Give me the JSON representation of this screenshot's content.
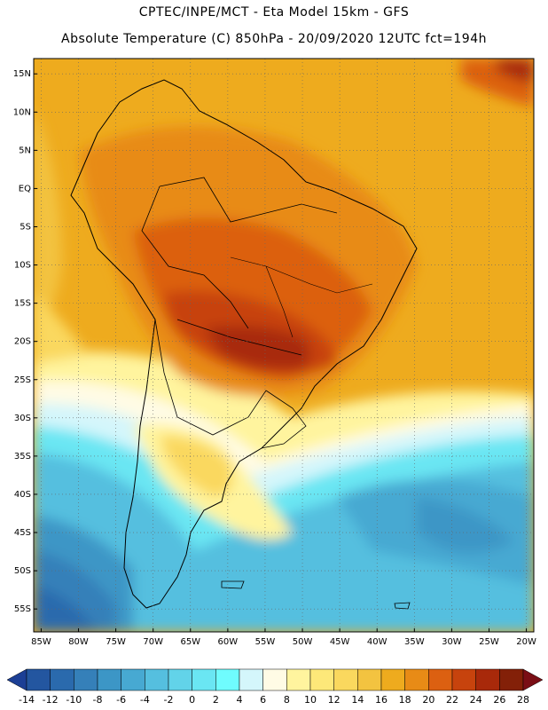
{
  "header": {
    "title_line1": "CPTEC/INPE/MCT -  Eta Model 15km - GFS",
    "title_line2": "Absolute Temperature (C) 850hPa - 20/09/2020 12UTC fct=194h"
  },
  "map": {
    "lon_ticks": [
      -85,
      -80,
      -75,
      -70,
      -65,
      -60,
      -55,
      -50,
      -45,
      -40,
      -35,
      -30,
      -25,
      -20
    ],
    "lon_labels": [
      "85W",
      "80W",
      "75W",
      "70W",
      "65W",
      "60W",
      "55W",
      "50W",
      "45W",
      "40W",
      "35W",
      "30W",
      "25W",
      "20W"
    ],
    "lat_ticks": [
      15,
      10,
      5,
      0,
      -5,
      -10,
      -15,
      -20,
      -25,
      -30,
      -35,
      -40,
      -45,
      -50,
      -55
    ],
    "lat_labels": [
      "15N",
      "10N",
      "5N",
      "EQ",
      "5S",
      "10S",
      "15S",
      "20S",
      "25S",
      "30S",
      "35S",
      "40S",
      "45S",
      "50S",
      "55S"
    ],
    "lon_range": [
      -86,
      -19
    ],
    "lat_range": [
      -58,
      17
    ]
  },
  "colorbar": {
    "labels": [
      "-14",
      "-12",
      "-10",
      "-8",
      "-6",
      "-4",
      "-2",
      "0",
      "2",
      "4",
      "6",
      "8",
      "10",
      "12",
      "14",
      "16",
      "18",
      "20",
      "22",
      "24",
      "26",
      "28"
    ],
    "colors": [
      "#1c3f95",
      "#2356a0",
      "#2a6aad",
      "#3580b9",
      "#3c96c6",
      "#47a9d2",
      "#55bfdf",
      "#62d3e9",
      "#6ae6f3",
      "#6ffcfe",
      "#d4f6fb",
      "#fffbe5",
      "#fff49e",
      "#fde879",
      "#fad85e",
      "#f3c340",
      "#eeab1e",
      "#e88b16",
      "#dc6011",
      "#c7430d",
      "#a8290a",
      "#832008",
      "#7a0e15"
    ]
  }
}
